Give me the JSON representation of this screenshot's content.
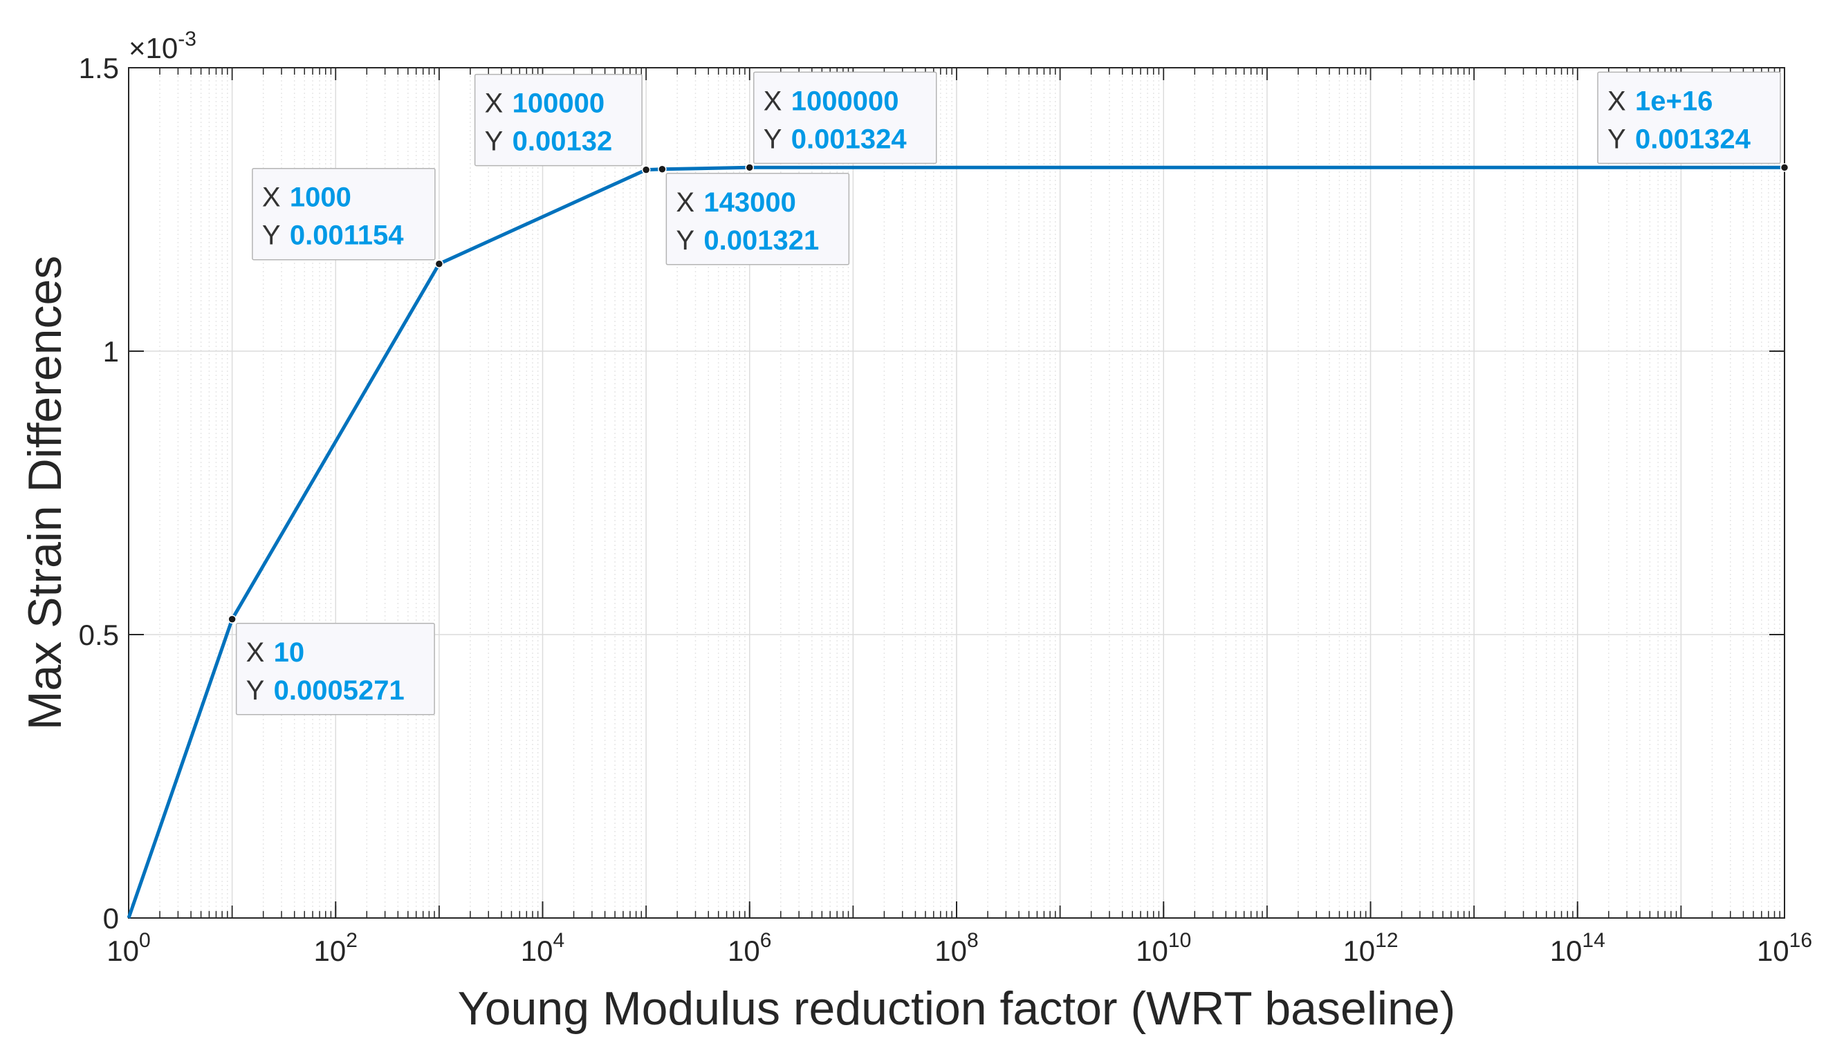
{
  "chart_data": {
    "type": "line",
    "title": "",
    "xlabel": "Young Modulus reduction factor (WRT baseline)",
    "ylabel": "Max Strain Differences",
    "xscale": "log",
    "xlim": [
      1,
      1e+16
    ],
    "ylim": [
      0,
      0.0015
    ],
    "y_exponent_label": "×10",
    "y_exponent": "-3",
    "grid": true,
    "x_ticks": [
      {
        "value": 1,
        "base": "10",
        "exp": "0"
      },
      {
        "value": 100,
        "base": "10",
        "exp": "2"
      },
      {
        "value": 10000,
        "base": "10",
        "exp": "4"
      },
      {
        "value": 1000000,
        "base": "10",
        "exp": "6"
      },
      {
        "value": 100000000,
        "base": "10",
        "exp": "8"
      },
      {
        "value": 10000000000,
        "base": "10",
        "exp": "10"
      },
      {
        "value": 1000000000000,
        "base": "10",
        "exp": "12"
      },
      {
        "value": 100000000000000,
        "base": "10",
        "exp": "14"
      },
      {
        "value": 10000000000000000,
        "base": "10",
        "exp": "16"
      }
    ],
    "y_ticks": [
      {
        "value": 0,
        "label": "0"
      },
      {
        "value": 0.0005,
        "label": "0.5"
      },
      {
        "value": 0.001,
        "label": "1"
      },
      {
        "value": 0.0015,
        "label": "1.5"
      }
    ],
    "series": [
      {
        "name": "Max Strain Differences",
        "color": "#0072bd",
        "x": [
          1,
          10,
          1000,
          100000,
          143000,
          1000000,
          10000000000000000
        ],
        "y": [
          0,
          0.0005271,
          0.001154,
          0.00132,
          0.001321,
          0.001324,
          0.001324
        ]
      }
    ],
    "datatips": [
      {
        "x_label": "10",
        "y_label": "0.0005271",
        "x": 10,
        "y": 0.0005271,
        "placement": "below-right"
      },
      {
        "x_label": "1000",
        "y_label": "0.001154",
        "x": 1000,
        "y": 0.001154,
        "placement": "above-left"
      },
      {
        "x_label": "100000",
        "y_label": "0.00132",
        "x": 100000,
        "y": 0.00132,
        "placement": "above-left"
      },
      {
        "x_label": "143000",
        "y_label": "0.001321",
        "x": 143000,
        "y": 0.001321,
        "placement": "below-right"
      },
      {
        "x_label": "1000000",
        "y_label": "0.001324",
        "x": 1000000,
        "y": 0.001324,
        "placement": "above-right"
      },
      {
        "x_label": "1e+16",
        "y_label": "0.001324",
        "x": 1e+16,
        "y": 0.001324,
        "placement": "above-left"
      }
    ],
    "datatip_letters": {
      "x": "X",
      "y": "Y"
    }
  }
}
